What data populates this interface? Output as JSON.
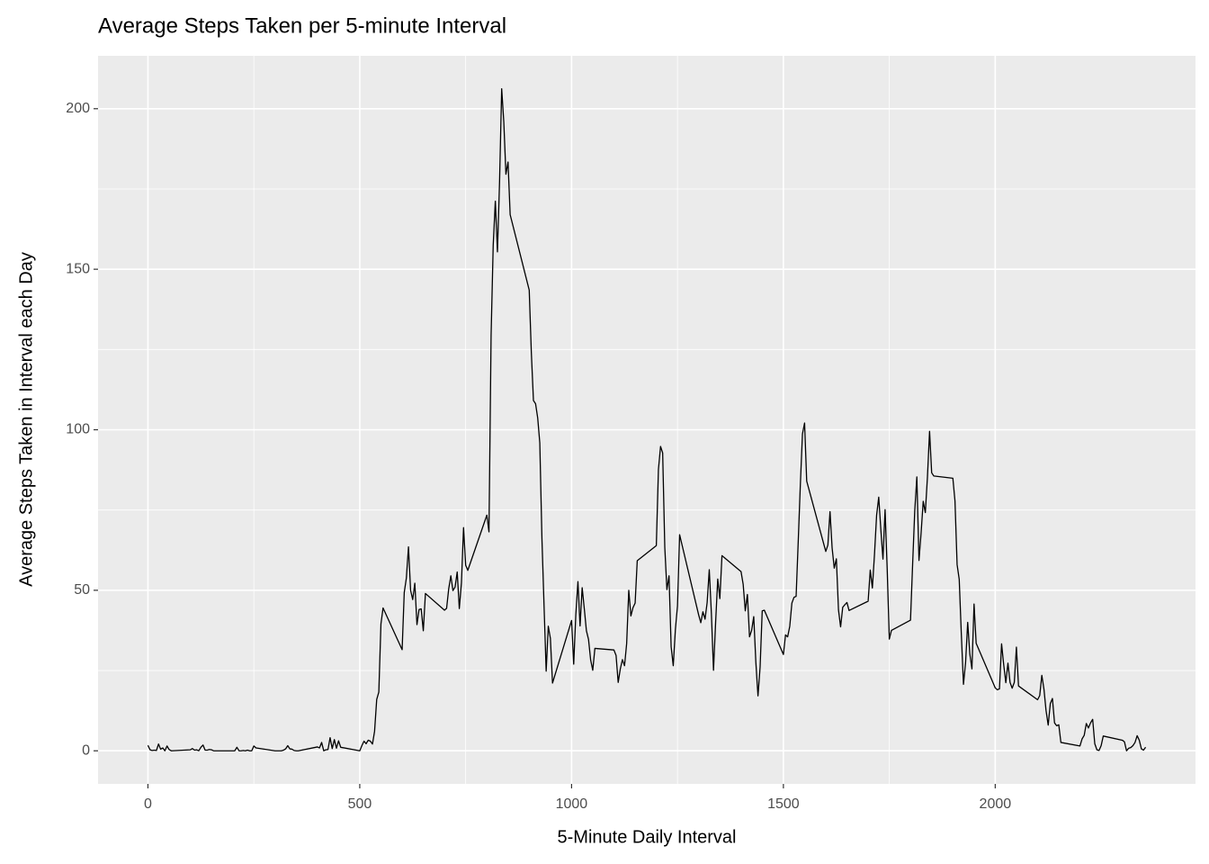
{
  "chart_data": {
    "type": "line",
    "title": "Average Steps Taken per 5-minute Interval",
    "x_label": "5-Minute Daily Interval",
    "y_label": "Average Steps Taken in Interval each Day",
    "grid": true,
    "xlim": [
      -117.75,
      2472.75
    ],
    "ylim": [
      -10.31,
      216.48
    ],
    "xticks": [
      0,
      500,
      1000,
      1500,
      2000
    ],
    "yticks": [
      0,
      50,
      100,
      150,
      200
    ],
    "x": [
      0,
      5,
      10,
      15,
      20,
      25,
      30,
      35,
      40,
      45,
      50,
      55,
      100,
      105,
      110,
      115,
      120,
      125,
      130,
      135,
      140,
      145,
      150,
      155,
      200,
      205,
      210,
      215,
      220,
      225,
      230,
      235,
      240,
      245,
      250,
      255,
      300,
      305,
      310,
      315,
      320,
      325,
      330,
      335,
      340,
      345,
      350,
      355,
      400,
      405,
      410,
      415,
      420,
      425,
      430,
      435,
      440,
      445,
      450,
      455,
      500,
      505,
      510,
      515,
      520,
      525,
      530,
      535,
      540,
      545,
      550,
      555,
      600,
      605,
      610,
      615,
      620,
      625,
      630,
      635,
      640,
      645,
      650,
      655,
      700,
      705,
      710,
      715,
      720,
      725,
      730,
      735,
      740,
      745,
      750,
      755,
      800,
      805,
      810,
      815,
      820,
      825,
      830,
      835,
      840,
      845,
      850,
      855,
      900,
      905,
      910,
      915,
      920,
      925,
      930,
      935,
      940,
      945,
      950,
      955,
      1000,
      1005,
      1010,
      1015,
      1020,
      1025,
      1030,
      1035,
      1040,
      1045,
      1050,
      1055,
      1100,
      1105,
      1110,
      1115,
      1120,
      1125,
      1130,
      1135,
      1140,
      1145,
      1150,
      1155,
      1200,
      1205,
      1210,
      1215,
      1220,
      1225,
      1230,
      1235,
      1240,
      1245,
      1250,
      1255,
      1300,
      1305,
      1310,
      1315,
      1320,
      1325,
      1330,
      1335,
      1340,
      1345,
      1350,
      1355,
      1400,
      1405,
      1410,
      1415,
      1420,
      1425,
      1430,
      1435,
      1440,
      1445,
      1450,
      1455,
      1500,
      1505,
      1510,
      1515,
      1520,
      1525,
      1530,
      1535,
      1540,
      1545,
      1550,
      1555,
      1600,
      1605,
      1610,
      1615,
      1620,
      1625,
      1630,
      1635,
      1640,
      1645,
      1650,
      1655,
      1700,
      1705,
      1710,
      1715,
      1720,
      1725,
      1730,
      1735,
      1740,
      1745,
      1750,
      1755,
      1800,
      1805,
      1810,
      1815,
      1820,
      1825,
      1830,
      1835,
      1840,
      1845,
      1850,
      1855,
      1900,
      1905,
      1910,
      1915,
      1920,
      1925,
      1930,
      1935,
      1940,
      1945,
      1950,
      1955,
      2000,
      2005,
      2010,
      2015,
      2020,
      2025,
      2030,
      2035,
      2040,
      2045,
      2050,
      2055,
      2100,
      2105,
      2110,
      2115,
      2120,
      2125,
      2130,
      2135,
      2140,
      2145,
      2150,
      2155,
      2200,
      2205,
      2210,
      2215,
      2220,
      2225,
      2230,
      2235,
      2240,
      2245,
      2250,
      2255,
      2300,
      2305,
      2310,
      2315,
      2320,
      2325,
      2330,
      2335,
      2340,
      2345,
      2350,
      2355
    ],
    "series": [
      {
        "color": "#000000",
        "values": [
          1.7,
          0.3,
          0.1,
          0.2,
          0.1,
          2.1,
          0.5,
          0.9,
          0,
          1.5,
          0.4,
          0,
          0.3,
          0.7,
          0.2,
          0.3,
          0,
          1.1,
          1.8,
          0.2,
          0.2,
          0.4,
          0.3,
          0,
          0,
          0,
          1.1,
          0,
          0,
          0.1,
          0,
          0.2,
          0,
          0,
          1.5,
          0.9,
          0,
          0,
          0,
          0,
          0.2,
          0.6,
          1.6,
          0.6,
          0.5,
          0.1,
          0,
          0,
          1.2,
          0.9,
          2.6,
          0,
          0.3,
          0.4,
          4.1,
          0.7,
          3.5,
          0.8,
          3.1,
          1.1,
          0,
          1.6,
          3.0,
          2.2,
          3.3,
          3.0,
          2.1,
          6.1,
          16.0,
          18.3,
          39.5,
          44.5,
          31.5,
          49.3,
          53.8,
          63.5,
          50,
          47.1,
          52.2,
          39.3,
          44.0,
          44.2,
          37.4,
          49.0,
          43.8,
          44.4,
          50.5,
          54.5,
          49.9,
          51.0,
          55.7,
          44.3,
          52.3,
          69.5,
          57.8,
          56.2,
          73.4,
          68.2,
          129.4,
          157.5,
          171.2,
          155.4,
          177.3,
          206.2,
          195.9,
          179.6,
          183.4,
          167.0,
          143.5,
          124.0,
          109.1,
          108.1,
          103.7,
          95.9,
          66.2,
          45.2,
          24.8,
          38.8,
          35.0,
          21.1,
          40.6,
          27.0,
          42.4,
          52.7,
          38.9,
          50.8,
          44.3,
          37.4,
          34.7,
          28.3,
          25.1,
          31.9,
          31.4,
          29.7,
          21.3,
          25.5,
          28.4,
          26.5,
          33.4,
          50.0,
          42.0,
          44.6,
          46.0,
          59.2,
          63.9,
          87.6,
          94.8,
          92.8,
          63.4,
          50.2,
          54.5,
          32.4,
          26.5,
          37.7,
          45.1,
          67.3,
          42.3,
          39.9,
          43.3,
          41.0,
          46.2,
          56.4,
          42.8,
          25.1,
          40.0,
          53.5,
          47.4,
          60.8,
          55.8,
          51.9,
          43.6,
          48.7,
          35.5,
          37.5,
          41.8,
          27.5,
          17.1,
          26.1,
          43.6,
          43.8,
          30.0,
          36.1,
          35.5,
          38.8,
          46.0,
          47.8,
          48.1,
          65.3,
          82.9,
          98.7,
          102.1,
          84.0,
          62.1,
          64.1,
          74.5,
          63.2,
          56.9,
          59.8,
          43.9,
          38.6,
          44.7,
          45.5,
          46.2,
          43.7,
          46.6,
          56.3,
          50.7,
          61.2,
          73.4,
          79.0,
          68.9,
          59.7,
          75.1,
          56.5,
          34.8,
          37.5,
          40.7,
          58.0,
          74.7,
          85.3,
          59.3,
          67.8,
          77.7,
          74.2,
          85.3,
          99.5,
          86.6,
          85.6,
          84.9,
          77.8,
          58.0,
          53.4,
          36.3,
          20.7,
          27.4,
          40.0,
          30.2,
          25.5,
          45.7,
          33.5,
          19.6,
          19.0,
          19.3,
          33.3,
          26.8,
          21.2,
          27.3,
          21.3,
          19.5,
          21.3,
          32.3,
          20.2,
          15.9,
          17.2,
          23.5,
          19.2,
          12.5,
          8.0,
          14.7,
          16.3,
          8.7,
          7.8,
          8.1,
          2.6,
          1.5,
          3.7,
          4.8,
          8.5,
          7.1,
          8.7,
          9.8,
          2.2,
          0.3,
          0.1,
          1.6,
          4.6,
          3.3,
          2.8,
          0,
          0.8,
          1.0,
          1.6,
          2.6,
          4.7,
          3.3,
          0.6,
          0.2,
          1.1
        ]
      }
    ]
  }
}
